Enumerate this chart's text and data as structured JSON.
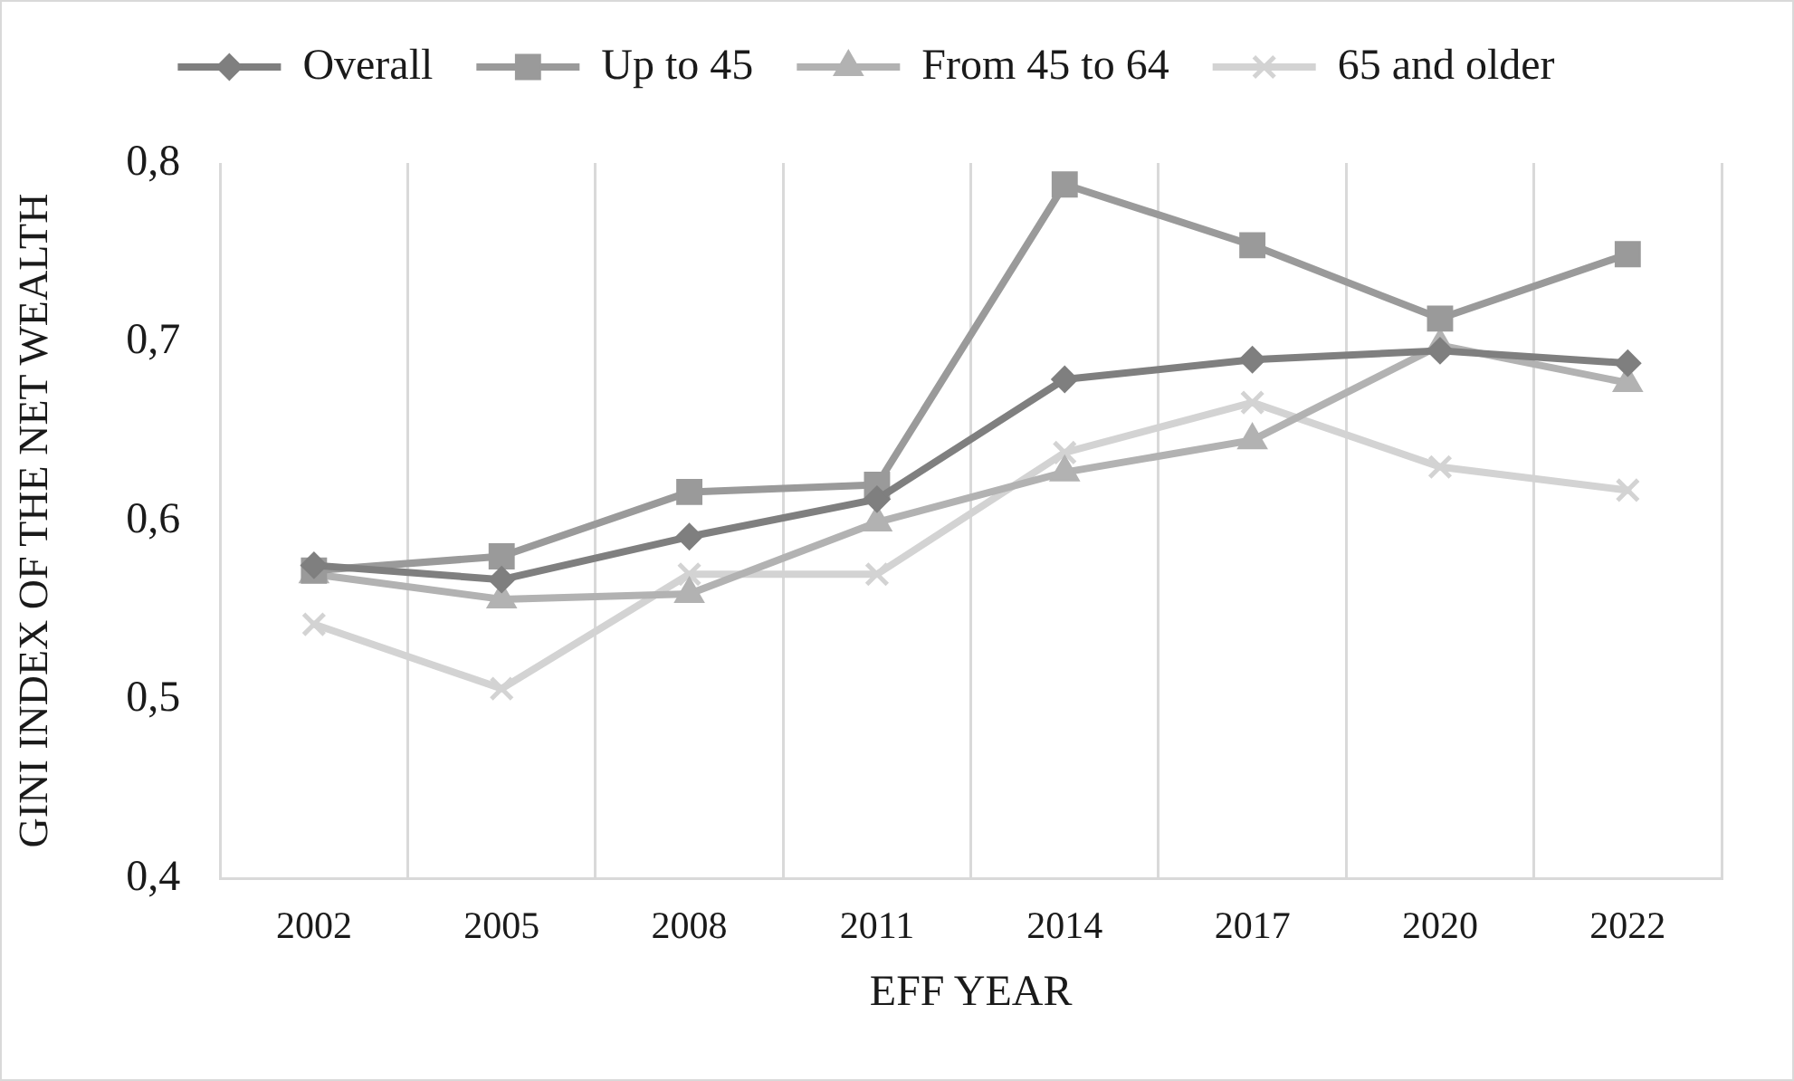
{
  "chart_data": {
    "type": "line",
    "xlabel": "EFF YEAR",
    "ylabel": "GINI INDEX OF THE NET WEALTH",
    "categories": [
      "2002",
      "2005",
      "2008",
      "2011",
      "2014",
      "2017",
      "2020",
      "2022"
    ],
    "series": [
      {
        "name": "Overall",
        "color": "#7f7f7f",
        "marker": "diamond",
        "values": [
          0.575,
          0.567,
          0.591,
          0.612,
          0.679,
          0.69,
          0.695,
          0.688
        ]
      },
      {
        "name": "Up to 45",
        "color": "#9a9a9a",
        "marker": "square",
        "values": [
          0.572,
          0.58,
          0.616,
          0.62,
          0.788,
          0.754,
          0.713,
          0.749
        ]
      },
      {
        "name": "From 45 to 64",
        "color": "#b2b2b2",
        "marker": "triangle",
        "values": [
          0.57,
          0.556,
          0.559,
          0.599,
          0.627,
          0.645,
          0.698,
          0.677
        ]
      },
      {
        "name": "65 and older",
        "color": "#d3d3d3",
        "marker": "cross",
        "values": [
          0.542,
          0.506,
          0.57,
          0.57,
          0.638,
          0.666,
          0.63,
          0.617
        ]
      }
    ],
    "ylim": [
      0.4,
      0.8
    ],
    "yticks": [
      {
        "value": 0.4,
        "label": "0,4"
      },
      {
        "value": 0.5,
        "label": "0,5"
      },
      {
        "value": 0.6,
        "label": "0,6"
      },
      {
        "value": 0.7,
        "label": "0,7"
      },
      {
        "value": 0.8,
        "label": "0,8"
      }
    ],
    "grid": "x",
    "legend": "top",
    "line_style": "solid"
  }
}
